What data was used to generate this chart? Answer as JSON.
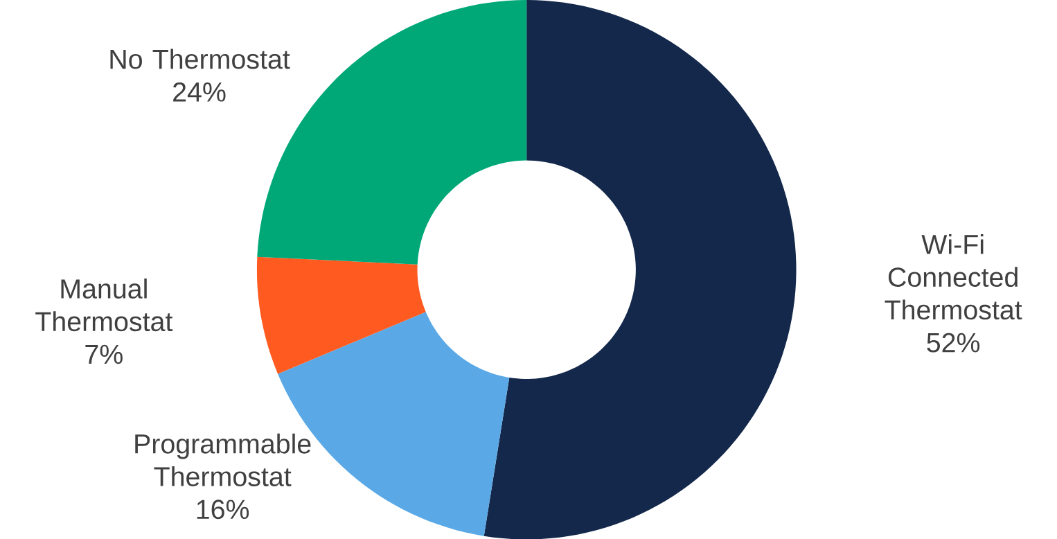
{
  "chart_data": {
    "type": "donut",
    "categories": [
      "Wi-Fi Connected Thermostat",
      "Programmable Thermostat",
      "Manual Thermostat",
      "No Thermostat"
    ],
    "values": [
      52,
      16,
      7,
      24
    ],
    "value_labels": [
      "52%",
      "16%",
      "7%",
      "24%"
    ],
    "colors": [
      "#13284b",
      "#5aa9e6",
      "#ff5a1f",
      "#00a878"
    ]
  }
}
